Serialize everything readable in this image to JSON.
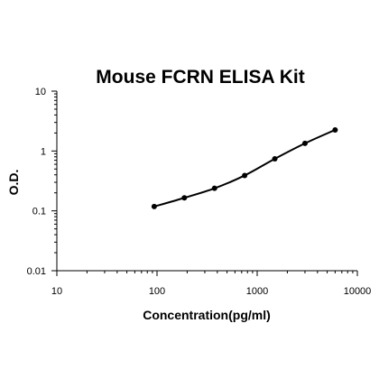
{
  "chart_data": {
    "type": "line",
    "title": "Mouse FCRN ELISA Kit",
    "xlabel": "Concentration(pg/ml)",
    "ylabel": "O.D.",
    "x_scale": "log",
    "y_scale": "log",
    "xlim": [
      10,
      10000
    ],
    "ylim": [
      0.01,
      10
    ],
    "x_ticks": [
      "10",
      "100",
      "1000",
      "10000"
    ],
    "y_ticks": [
      "0.01",
      "0.1",
      "1",
      "10"
    ],
    "grid": false,
    "legend": "none",
    "line_color": "#000000",
    "series": [
      {
        "x": [
          93.75,
          187.5,
          375,
          750,
          1500,
          3000,
          6000
        ],
        "values": [
          0.118,
          0.165,
          0.238,
          0.39,
          0.74,
          1.34,
          2.25
        ]
      }
    ]
  }
}
